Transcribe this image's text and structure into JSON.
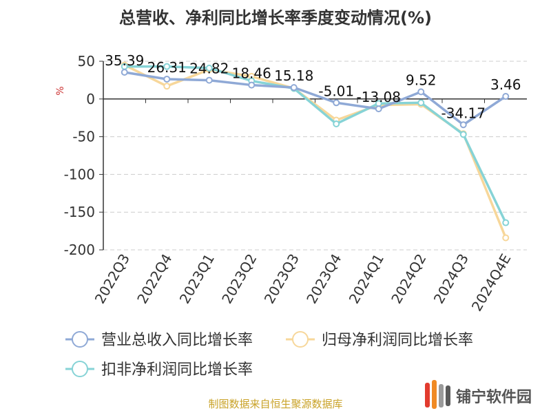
{
  "chart_data": {
    "type": "line",
    "title": "总营收、净利同比增长率季度变动情况(%)",
    "ylabel": "%",
    "ylim": [
      -200,
      50
    ],
    "yticks": [
      50,
      0,
      -50,
      -100,
      -150,
      -200
    ],
    "grid": true,
    "legend_position": "bottom",
    "categories": [
      "2022Q3",
      "2022Q4",
      "2023Q1",
      "2023Q2",
      "2023Q3",
      "2023Q4",
      "2024Q1",
      "2024Q2",
      "2024Q3",
      "2024Q4E"
    ],
    "series": [
      {
        "name": "营业总收入同比增长率",
        "color": "#8fa9d6",
        "values": [
          35.39,
          26.31,
          24.82,
          18.46,
          15.18,
          -5.01,
          -13.08,
          9.52,
          -34.17,
          3.46
        ],
        "data_labels": [
          "35.39",
          "26.31",
          "24.82",
          "18.46",
          "15.18",
          "-5.01",
          "-13.08",
          "9.52",
          "-34.17",
          "3.46"
        ]
      },
      {
        "name": "归母净利润同比增长率",
        "color": "#f7d79a",
        "values": [
          45,
          17,
          39,
          30,
          14,
          -28,
          -8,
          -7,
          -46,
          -184
        ]
      },
      {
        "name": "扣非净利润同比增长率",
        "color": "#86d3d6",
        "values": [
          43,
          43,
          41,
          24,
          14,
          -33,
          -6,
          -5,
          -47,
          -164
        ]
      }
    ]
  },
  "footer": {
    "source": "制图数据来自恒生聚源数据库",
    "logo_text": "铺宁软件园"
  }
}
